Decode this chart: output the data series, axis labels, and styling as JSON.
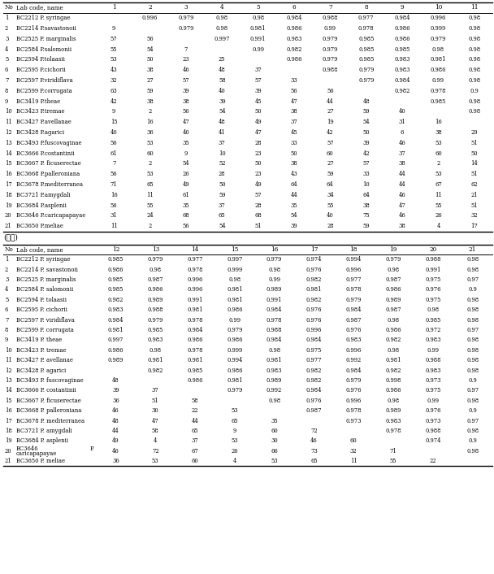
{
  "continuation_label": "(계속)",
  "section1": {
    "header": [
      "No",
      "Lab code, name",
      "1",
      "2",
      "3",
      "4",
      "5",
      "6",
      "7",
      "8",
      "9",
      "10",
      "11"
    ],
    "rows": [
      [
        "1",
        "BC2212 P. syringae",
        "",
        "0.996",
        "0.979",
        "0.98",
        "0.98",
        "0.984",
        "0.988",
        "0.977",
        "0.984",
        "0.996",
        "0.98"
      ],
      [
        "2",
        "BC2214 P.savastonoii",
        "9",
        "",
        "0.979",
        "0.98",
        "0.981",
        "0.986",
        "0.99",
        "0.978",
        "0.986",
        "0.999",
        "0.98"
      ],
      [
        "3",
        "BC2525 P. marginalis",
        "57",
        "56",
        "",
        "0.997",
        "0.991",
        "0.983",
        "0.979",
        "0.985",
        "0.986",
        "0.979",
        "0.98"
      ],
      [
        "4",
        "BC2584 P.salomonii",
        "55",
        "54",
        "7",
        "",
        "0.99",
        "0.982",
        "0.979",
        "0.985",
        "0.985",
        "0.98",
        "0.98"
      ],
      [
        "5",
        "BC2594 P.tolaasii",
        "53",
        "50",
        "23",
        "25",
        "",
        "0.986",
        "0.979",
        "0.985",
        "0.983",
        "0.981",
        "0.98"
      ],
      [
        "6",
        "BC2595 P.cichorii",
        "43",
        "38",
        "46",
        "48",
        "37",
        "",
        "0.988",
        "0.979",
        "0.983",
        "0.986",
        "0.98"
      ],
      [
        "7",
        "BC2597 P.viridiflava",
        "32",
        "27",
        "57",
        "58",
        "57",
        "33",
        "",
        "0.979",
        "0.984",
        "0.99",
        "0.98"
      ],
      [
        "8",
        "BC2599 P.corrugata",
        "63",
        "59",
        "39",
        "40",
        "39",
        "56",
        "56",
        "",
        "0.982",
        "0.978",
        "0.9"
      ],
      [
        "9",
        "BC3419 P.theae",
        "42",
        "38",
        "38",
        "39",
        "45",
        "47",
        "44",
        "48",
        "",
        "0.985",
        "0.98"
      ],
      [
        "10",
        "BC3423 P.tremae",
        "9",
        "2",
        "56",
        "54",
        "50",
        "38",
        "27",
        "59",
        "40",
        "",
        "0.98"
      ],
      [
        "11",
        "BC3427 P.avellanae",
        "15",
        "16",
        "47",
        "48",
        "49",
        "37",
        "19",
        "54",
        "31",
        "16",
        ""
      ],
      [
        "12",
        "BC3428 P.agarici",
        "40",
        "36",
        "40",
        "41",
        "47",
        "45",
        "42",
        "50",
        "6",
        "38",
        "29"
      ],
      [
        "13",
        "BC3493 P.fuscovaginae",
        "56",
        "53",
        "35",
        "37",
        "28",
        "33",
        "57",
        "39",
        "46",
        "53",
        "51"
      ],
      [
        "14",
        "BC3666 P.costantinii",
        "61",
        "60",
        "9",
        "10",
        "23",
        "50",
        "60",
        "42",
        "37",
        "60",
        "50"
      ],
      [
        "15",
        "BC3667 P. ficuserectae",
        "7",
        "2",
        "54",
        "52",
        "50",
        "38",
        "27",
        "57",
        "38",
        "2",
        "14"
      ],
      [
        "16",
        "BC3668 P.palleroniana",
        "56",
        "53",
        "26",
        "28",
        "23",
        "43",
        "59",
        "33",
        "44",
        "53",
        "51"
      ],
      [
        "17",
        "BC3678 P.mediterranea",
        "71",
        "65",
        "49",
        "50",
        "49",
        "64",
        "64",
        "10",
        "44",
        "67",
        "62"
      ],
      [
        "18",
        "BC3721 P.amygdali",
        "16",
        "11",
        "61",
        "59",
        "57",
        "44",
        "34",
        "64",
        "46",
        "11",
        "21"
      ],
      [
        "19",
        "BC3684 P.asplenii",
        "56",
        "55",
        "35",
        "37",
        "28",
        "35",
        "55",
        "38",
        "47",
        "55",
        "51"
      ],
      [
        "20",
        "BC3646 P.caricapapayae",
        "31",
        "24",
        "68",
        "65",
        "68",
        "54",
        "40",
        "75",
        "46",
        "26",
        "32"
      ],
      [
        "21",
        "BC3650 P.meliae",
        "11",
        "2",
        "56",
        "54",
        "51",
        "39",
        "28",
        "59",
        "38",
        "4",
        "17"
      ]
    ]
  },
  "section2": {
    "header": [
      "No",
      "Lab code, name",
      "12",
      "13",
      "14",
      "15",
      "16",
      "17",
      "18",
      "19",
      "20",
      "21"
    ],
    "rows": [
      [
        "1",
        "BC2212 P. syringae",
        "0.985",
        "0.979",
        "0.977",
        "0.997",
        "0.979",
        "0.974",
        "0.994",
        "0.979",
        "0.988",
        "0.98"
      ],
      [
        "2",
        "BC2214 P. savastonoii",
        "0.986",
        "0.98",
        "0.978",
        "0.999",
        "0.98",
        "0.976",
        "0.996",
        "0.98",
        "0.991",
        "0.98"
      ],
      [
        "3",
        "BC2525 P. marginalis",
        "0.985",
        "0.987",
        "0.996",
        "0.98",
        "0.99",
        "0.982",
        "0.977",
        "0.987",
        "0.975",
        "0.97"
      ],
      [
        "4",
        "BC2584 P. salomonii",
        "0.985",
        "0.986",
        "0.996",
        "0.981",
        "0.989",
        "0.981",
        "0.978",
        "0.986",
        "0.976",
        "0.9"
      ],
      [
        "5",
        "BC2594 P. tolaasii",
        "0.982",
        "0.989",
        "0.991",
        "0.981",
        "0.991",
        "0.982",
        "0.979",
        "0.989",
        "0.975",
        "0.98"
      ],
      [
        "6",
        "BC2595 P. cichorii",
        "0.983",
        "0.988",
        "0.981",
        "0.986",
        "0.984",
        "0.976",
        "0.984",
        "0.987",
        "0.98",
        "0.98"
      ],
      [
        "7",
        "BC2597 P. viridiflava",
        "0.984",
        "0.979",
        "0.978",
        "0.99",
        "0.978",
        "0.976",
        "0.987",
        "0.98",
        "0.985",
        "0.98"
      ],
      [
        "8",
        "BC2599 P. corrugata",
        "0.981",
        "0.985",
        "0.984",
        "0.979",
        "0.988",
        "0.996",
        "0.976",
        "0.986",
        "0.972",
        "0.97"
      ],
      [
        "9",
        "BC3419 P. theae",
        "0.997",
        "0.983",
        "0.986",
        "0.986",
        "0.984",
        "0.984",
        "0.983",
        "0.982",
        "0.983",
        "0.98"
      ],
      [
        "10",
        "BC3423 P. tremae",
        "0.986",
        "0.98",
        "0.978",
        "0.999",
        "0.98",
        "0.975",
        "0.996",
        "0.98",
        "0.99",
        "0.98"
      ],
      [
        "11",
        "BC3427 P. avellanae",
        "0.989",
        "0.981",
        "0.981",
        "0.994",
        "0.981",
        "0.977",
        "0.992",
        "0.981",
        "0.988",
        "0.98"
      ],
      [
        "12",
        "BC3428 P. agarici",
        "",
        "0.982",
        "0.985",
        "0.986",
        "0.983",
        "0.982",
        "0.984",
        "0.982",
        "0.983",
        "0.98"
      ],
      [
        "13",
        "BC3493 P. fuscovaginae",
        "48",
        "",
        "0.986",
        "0.981",
        "0.989",
        "0.982",
        "0.979",
        "0.998",
        "0.973",
        "0.9"
      ],
      [
        "14",
        "BC3666 P. costantinii",
        "39",
        "37",
        "",
        "0.979",
        "0.992",
        "0.984",
        "0.976",
        "0.986",
        "0.975",
        "0.97"
      ],
      [
        "15",
        "BC3667 P. ficuserectae",
        "36",
        "51",
        "58",
        "",
        "0.98",
        "0.976",
        "0.996",
        "0.98",
        "0.99",
        "0.98"
      ],
      [
        "16",
        "BC3668 P. palleroniana",
        "46",
        "30",
        "22",
        "53",
        "",
        "0.987",
        "0.978",
        "0.989",
        "0.976",
        "0.9"
      ],
      [
        "17",
        "BC3678 P. mediterranea",
        "48",
        "47",
        "44",
        "65",
        "35",
        "",
        "0.973",
        "0.983",
        "0.973",
        "0.97"
      ],
      [
        "18",
        "BC3721 P. amygdali",
        "44",
        "58",
        "65",
        "9",
        "60",
        "72",
        "",
        "0.978",
        "0.988",
        "0.98"
      ],
      [
        "19",
        "BC3684 P. asplenii",
        "49",
        "4",
        "37",
        "53",
        "30",
        "46",
        "60",
        "",
        "0.974",
        "0.9"
      ],
      [
        "20",
        "BC3646 P. caricapapayae|P.",
        "46",
        "72",
        "67",
        "26",
        "66",
        "73",
        "32",
        "71",
        "",
        "0.98"
      ],
      [
        "21",
        "BC3650 P. meliae",
        "36",
        "53",
        "60",
        "4",
        "53",
        "65",
        "11",
        "55",
        "22",
        ""
      ]
    ]
  }
}
